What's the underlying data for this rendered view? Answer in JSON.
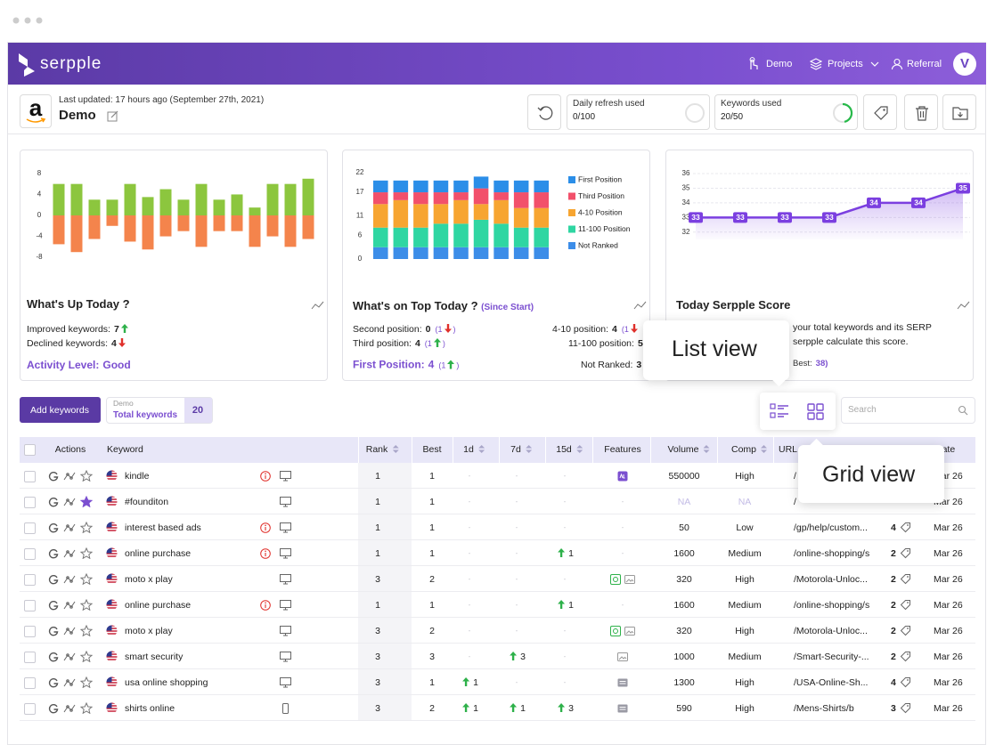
{
  "header": {
    "logo": "serpple",
    "nav": [
      "Demo",
      "Projects",
      "Referral"
    ],
    "avatar": "V"
  },
  "project": {
    "logo": "a",
    "last_updated": "Last updated: 17 hours ago (September 27th, 2021)",
    "name": "Demo",
    "daily_refresh": {
      "label": "Daily refresh used",
      "value": "0/100"
    },
    "keywords_used": {
      "label": "Keywords used",
      "value": "20/50"
    }
  },
  "chart_data": [
    {
      "type": "bar",
      "title": "What's Up Today ?",
      "series": [
        {
          "color": "#8cc63e",
          "values": [
            6,
            6,
            3,
            3,
            6,
            3.5,
            5,
            3,
            6,
            3,
            4,
            1.5,
            6,
            6,
            7
          ]
        },
        {
          "color": "#f4844c",
          "values": [
            -5.5,
            -7,
            -4.5,
            -2,
            -5,
            -6.5,
            -4,
            -3,
            -6,
            -3,
            -3,
            -6,
            -4,
            -6,
            -4.5
          ]
        }
      ],
      "ylim": [
        -9,
        9
      ],
      "yticks": [
        8,
        4,
        0,
        -4,
        -8
      ],
      "grid": false
    },
    {
      "type": "stacked_bar",
      "title": "What's on Top Today ?",
      "subtitle": "(Since Start)",
      "legend": "right",
      "series": [
        {
          "name": "First Position",
          "color": "#2b8ee8",
          "values": [
            3,
            3,
            3,
            3,
            3,
            3,
            3,
            3,
            3
          ]
        },
        {
          "name": "Third Position",
          "color": "#f2506b",
          "values": [
            3,
            2,
            3,
            3,
            2,
            4,
            2,
            4,
            4
          ]
        },
        {
          "name": "4-10 Position",
          "color": "#f7a531",
          "values": [
            6,
            7,
            6,
            5,
            6,
            4,
            6,
            5,
            5
          ]
        },
        {
          "name": "11-100 Position",
          "color": "#2fd6a2",
          "values": [
            5,
            5,
            5,
            6,
            6,
            7,
            6,
            5,
            5
          ]
        },
        {
          "name": "Not Ranked",
          "color": "#3c8de8",
          "values": [
            3,
            3,
            3,
            3,
            3,
            3,
            3,
            3,
            3
          ]
        }
      ],
      "ylim": [
        0,
        22
      ],
      "yticks": [
        0,
        6,
        11,
        17,
        22
      ],
      "grid": false
    },
    {
      "type": "line",
      "title": "Today Serpple Score",
      "values": [
        33,
        33,
        33,
        33,
        34,
        34,
        35
      ],
      "color": "#7b3fe0",
      "ylim": [
        31.5,
        36
      ],
      "yticks": [
        32,
        33,
        34,
        35,
        36
      ],
      "grid": true
    }
  ],
  "cards": [
    {
      "lines": [
        {
          "label": "Improved keywords:",
          "value": 7,
          "trend": "up"
        },
        {
          "label": "Declined keywords:",
          "value": 4,
          "trend": "down"
        }
      ],
      "highlight": {
        "label": "Activity Level:",
        "value": "Good"
      }
    },
    {
      "lines": [
        {
          "label": "Second position:",
          "value": 0,
          "change_open": "(1",
          "trend": "down",
          "change_close": ")"
        },
        {
          "label": "Third position:",
          "value": 4,
          "change_open": "(1",
          "trend": "up",
          "change_close": ")"
        },
        {
          "label": "4-10 position:",
          "value": 4,
          "change_open": "(1",
          "trend": "down"
        },
        {
          "label": "11-100 position:",
          "value": 5
        },
        {
          "label": "Not Ranked:",
          "value": 3
        }
      ],
      "highlight": {
        "label": "First Position:",
        "value": 4,
        "change_open": "(1",
        "trend": "up",
        "change_close": ")"
      }
    },
    {
      "lines": [
        {
          "label": "your total keywords and its SERP"
        },
        {
          "label": "serpple calculate this score."
        }
      ],
      "highlight": {
        "label": "Best:",
        "value": "38)"
      }
    }
  ],
  "toolbar": {
    "add_button": "Add keywords",
    "project": "Demo",
    "total_label": "Total keywords",
    "total": 20,
    "search_placeholder": "Search"
  },
  "tooltips": {
    "list": "List view",
    "grid": "Grid view"
  },
  "table": {
    "headers": [
      {
        "label": "Actions",
        "sortable": false
      },
      {
        "label": "Keyword",
        "sortable": false
      },
      {
        "label": "Rank",
        "sortable": true
      },
      {
        "label": "Best",
        "sortable": false
      },
      {
        "label": "1d",
        "sortable": true
      },
      {
        "label": "7d",
        "sortable": true
      },
      {
        "label": "15d",
        "sortable": true
      },
      {
        "label": "Features",
        "sortable": false
      },
      {
        "label": "Volume",
        "sortable": true
      },
      {
        "label": "Comp",
        "sortable": true
      },
      {
        "label": "URL",
        "sortable": false
      },
      {
        "label": "Date",
        "sortable": false
      }
    ],
    "rows": [
      {
        "keyword": "kindle",
        "info": true,
        "device": "desktop",
        "starred": false,
        "rank": 1,
        "best": 1,
        "d1": "-",
        "d7": "-",
        "d15": "-",
        "features": [
          "ad"
        ],
        "volume": 550000,
        "comp": "High",
        "url": "/",
        "date": "Mar 26"
      },
      {
        "keyword": "#founditon",
        "info": false,
        "device": "desktop",
        "starred": true,
        "rank": 1,
        "best": 1,
        "d1": "-",
        "d7": "-",
        "d15": "-",
        "features": "-",
        "volume": "NA",
        "comp": "NA",
        "url": "/",
        "date": "Mar 26"
      },
      {
        "keyword": "interest based ads",
        "info": true,
        "device": "desktop",
        "starred": false,
        "rank": 1,
        "best": 1,
        "d1": "-",
        "d7": "-",
        "d15": "-",
        "features": "-",
        "volume": 50,
        "comp": "Low",
        "url": "/gp/help/custom...",
        "count": 4,
        "date": "Mar 26"
      },
      {
        "keyword": "online purchase",
        "info": true,
        "device": "desktop",
        "starred": false,
        "rank": 1,
        "best": 1,
        "d1": "-",
        "d7": "-",
        "d15": {
          "value": 1,
          "trend": "up"
        },
        "features": "-",
        "volume": 1600,
        "comp": "Medium",
        "url": "/online-shopping/s",
        "count": 2,
        "date": "Mar 26"
      },
      {
        "keyword": "moto x play",
        "info": false,
        "device": "desktop",
        "starred": false,
        "rank": 3,
        "best": 2,
        "d1": "-",
        "d7": "-",
        "d15": "-",
        "features": [
          "featured",
          "image"
        ],
        "volume": 320,
        "comp": "High",
        "url": "/Motorola-Unloc...",
        "count": 2,
        "date": "Mar 26"
      },
      {
        "keyword": "online purchase",
        "info": true,
        "device": "desktop",
        "starred": false,
        "rank": 1,
        "best": 1,
        "d1": "-",
        "d7": "-",
        "d15": {
          "value": 1,
          "trend": "up"
        },
        "features": "-",
        "volume": 1600,
        "comp": "Medium",
        "url": "/online-shopping/s",
        "count": 2,
        "date": "Mar 26"
      },
      {
        "keyword": "moto x play",
        "info": false,
        "device": "desktop",
        "starred": false,
        "rank": 3,
        "best": 2,
        "d1": "-",
        "d7": "-",
        "d15": "-",
        "features": [
          "featured",
          "image"
        ],
        "volume": 320,
        "comp": "High",
        "url": "/Motorola-Unloc...",
        "count": 2,
        "date": "Mar 26"
      },
      {
        "keyword": "smart security",
        "info": false,
        "device": "desktop",
        "starred": false,
        "rank": 3,
        "best": 3,
        "d1": "-",
        "d7": {
          "value": 3,
          "trend": "up"
        },
        "d15": "-",
        "features": [
          "image"
        ],
        "volume": 1000,
        "comp": "Medium",
        "url": "/Smart-Security-...",
        "count": 2,
        "date": "Mar 26"
      },
      {
        "keyword": "usa online shopping",
        "info": false,
        "device": "desktop",
        "starred": false,
        "rank": 3,
        "best": 1,
        "d1": {
          "value": 1,
          "trend": "up"
        },
        "d7": "-",
        "d15": "-",
        "features": [
          "news"
        ],
        "volume": 1300,
        "comp": "High",
        "url": "/USA-Online-Sh...",
        "count": 4,
        "date": "Mar 26"
      },
      {
        "keyword": "shirts online",
        "info": false,
        "device": "mobile",
        "starred": false,
        "rank": 3,
        "best": 2,
        "d1": {
          "value": 1,
          "trend": "up"
        },
        "d7": {
          "value": 1,
          "trend": "up"
        },
        "d15": {
          "value": 3,
          "trend": "up"
        },
        "features": [
          "news"
        ],
        "volume": 590,
        "comp": "High",
        "url": "/Mens-Shirts/b",
        "count": 3,
        "date": "Mar 26"
      }
    ]
  }
}
